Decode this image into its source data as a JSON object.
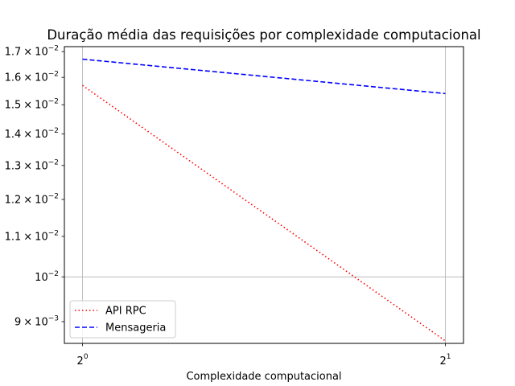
{
  "chart_data": {
    "type": "line",
    "title": "Duração média das requisições por complexidade computacional",
    "xlabel": "Complexidade computacional",
    "ylabel": "",
    "xscale": "log2",
    "yscale": "log10",
    "xlim": [
      1,
      2
    ],
    "ylim": [
      0.00855,
      0.0172
    ],
    "grid": true,
    "legend": "lower-left",
    "x": [
      1,
      2
    ],
    "x_ticks": [
      {
        "value": 1,
        "base": "2",
        "exp": "0"
      },
      {
        "value": 2,
        "base": "2",
        "exp": "1"
      }
    ],
    "y_ticks": [
      {
        "value": 0.017,
        "mant": "1.7",
        "times": "×",
        "base": "10",
        "exp": "−2"
      },
      {
        "value": 0.016,
        "mant": "1.6",
        "times": "×",
        "base": "10",
        "exp": "−2"
      },
      {
        "value": 0.015,
        "mant": "1.5",
        "times": "×",
        "base": "10",
        "exp": "−2"
      },
      {
        "value": 0.014,
        "mant": "1.4",
        "times": "×",
        "base": "10",
        "exp": "−2"
      },
      {
        "value": 0.013,
        "mant": "1.3",
        "times": "×",
        "base": "10",
        "exp": "−2"
      },
      {
        "value": 0.012,
        "mant": "1.2",
        "times": "×",
        "base": "10",
        "exp": "−2"
      },
      {
        "value": 0.011,
        "mant": "1.1",
        "times": "×",
        "base": "10",
        "exp": "−2"
      },
      {
        "value": 0.01,
        "mant": "",
        "times": "",
        "base": "10",
        "exp": "−2"
      },
      {
        "value": 0.009,
        "mant": "9",
        "times": "×",
        "base": "10",
        "exp": "−3"
      }
    ],
    "series": [
      {
        "name": "API RPC",
        "values": [
          0.0157,
          0.0086
        ],
        "color": "#ff0000",
        "style": "dotted"
      },
      {
        "name": "Mensageria",
        "values": [
          0.0167,
          0.0154
        ],
        "color": "#0000ff",
        "style": "dashed"
      }
    ]
  }
}
